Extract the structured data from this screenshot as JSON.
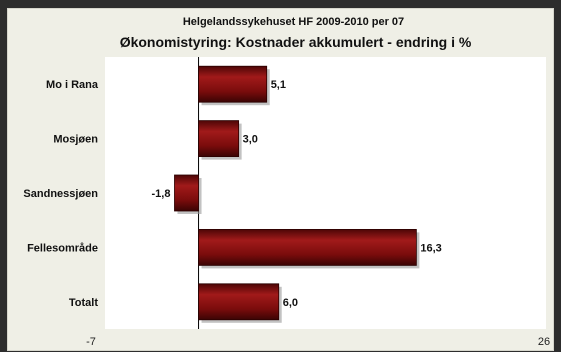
{
  "chart_data": {
    "type": "bar",
    "orientation": "horizontal",
    "subtitle": "Helgelandssykehuset HF 2009-2010 per 07",
    "title": "Økonomistyring: Kostnader akkumulert - endring i %",
    "categories": [
      "Mo i Rana",
      "Mosjøen",
      "Sandnessjøen",
      "Fellesområde",
      "Totalt"
    ],
    "values": [
      5.1,
      3.0,
      -1.8,
      16.3,
      6.0
    ],
    "value_labels": [
      "5,1",
      "3,0",
      "-1,8",
      "16,3",
      "6,0"
    ],
    "xlim": [
      -7,
      26
    ],
    "x_tick_labels": [
      "-7",
      "26"
    ],
    "grid": false,
    "legend": "none",
    "bar_color": "#7a0c0c",
    "bar_highlight_color": "#a11a1a"
  }
}
